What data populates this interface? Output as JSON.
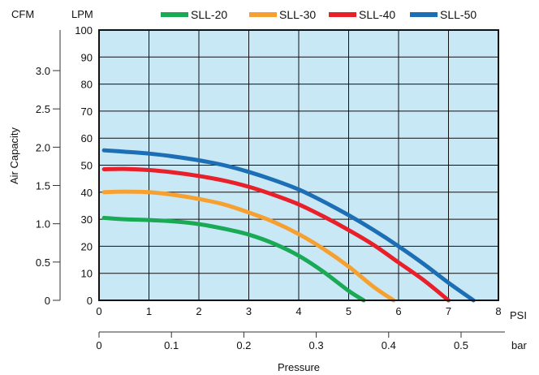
{
  "chart_data": {
    "type": "line",
    "background_color": "#c9e8f6",
    "grid": true,
    "legend_placement": "top",
    "series": [
      {
        "name": "SLL-20",
        "color": "#1aaa55",
        "points": [
          [
            0.1,
            30.5
          ],
          [
            0.5,
            30.0
          ],
          [
            1,
            29.7
          ],
          [
            1.5,
            29.2
          ],
          [
            2,
            28.2
          ],
          [
            2.5,
            26.5
          ],
          [
            3,
            24.3
          ],
          [
            3.5,
            21.0
          ],
          [
            4,
            16.5
          ],
          [
            4.5,
            10.5
          ],
          [
            5,
            3.5
          ],
          [
            5.3,
            0
          ]
        ]
      },
      {
        "name": "SLL-30",
        "color": "#f7a032",
        "points": [
          [
            0.1,
            40.0
          ],
          [
            0.5,
            40.2
          ],
          [
            1,
            40.0
          ],
          [
            1.5,
            39.0
          ],
          [
            2,
            37.5
          ],
          [
            2.5,
            35.5
          ],
          [
            3,
            32.5
          ],
          [
            3.5,
            29.0
          ],
          [
            4,
            24.5
          ],
          [
            4.5,
            19.0
          ],
          [
            5,
            12.5
          ],
          [
            5.5,
            5.0
          ],
          [
            5.9,
            0
          ]
        ]
      },
      {
        "name": "SLL-40",
        "color": "#e8202a",
        "points": [
          [
            0.1,
            48.5
          ],
          [
            0.5,
            48.6
          ],
          [
            1,
            48.2
          ],
          [
            1.5,
            47.3
          ],
          [
            2,
            46.0
          ],
          [
            2.5,
            44.3
          ],
          [
            3,
            42.0
          ],
          [
            3.5,
            39.0
          ],
          [
            4,
            35.5
          ],
          [
            4.5,
            31.0
          ],
          [
            5,
            26.0
          ],
          [
            5.5,
            20.5
          ],
          [
            6,
            14.0
          ],
          [
            6.5,
            7.5
          ],
          [
            7,
            0
          ]
        ]
      },
      {
        "name": "SLL-50",
        "color": "#1c6fb5",
        "points": [
          [
            0.1,
            55.5
          ],
          [
            0.5,
            55.0
          ],
          [
            1,
            54.3
          ],
          [
            1.5,
            53.2
          ],
          [
            2,
            51.8
          ],
          [
            2.5,
            50.0
          ],
          [
            3,
            47.5
          ],
          [
            3.5,
            44.5
          ],
          [
            4,
            41.0
          ],
          [
            4.5,
            36.5
          ],
          [
            5,
            31.5
          ],
          [
            5.5,
            26.0
          ],
          [
            6,
            20.0
          ],
          [
            6.5,
            13.5
          ],
          [
            7,
            6.5
          ],
          [
            7.5,
            0
          ]
        ]
      }
    ],
    "axes": {
      "y_left_units": {
        "CFM": "CFM",
        "LPM": "LPM"
      },
      "ylabel": "Air Capacity",
      "lpm": {
        "min": 0,
        "max": 100,
        "ticks": [
          "0",
          "10",
          "20",
          "30",
          "40",
          "50",
          "60",
          "70",
          "80",
          "90",
          "100"
        ]
      },
      "cfm": {
        "min": 0,
        "max": 3.53,
        "ticks": [
          {
            "v": 0,
            "label": "0"
          },
          {
            "v": 0.5,
            "label": "0.5"
          },
          {
            "v": 1.0,
            "label": "1.0"
          },
          {
            "v": 1.5,
            "label": "1.5"
          },
          {
            "v": 2.0,
            "label": "2.0"
          },
          {
            "v": 2.5,
            "label": "2.5"
          },
          {
            "v": 3.0,
            "label": "3.0"
          }
        ]
      },
      "psi": {
        "min": 0,
        "max": 8,
        "unit": "PSI",
        "ticks": [
          "0",
          "1",
          "2",
          "3",
          "4",
          "5",
          "6",
          "7",
          "8"
        ]
      },
      "bar": {
        "unit": "bar",
        "ticks": [
          {
            "v": 0,
            "label": "0"
          },
          {
            "v": 0.1,
            "label": "0.1"
          },
          {
            "v": 0.2,
            "label": "0.2"
          },
          {
            "v": 0.3,
            "label": "0.3"
          },
          {
            "v": 0.4,
            "label": "0.4"
          },
          {
            "v": 0.5,
            "label": "0.5"
          }
        ]
      },
      "xlabel": "Pressure"
    }
  }
}
